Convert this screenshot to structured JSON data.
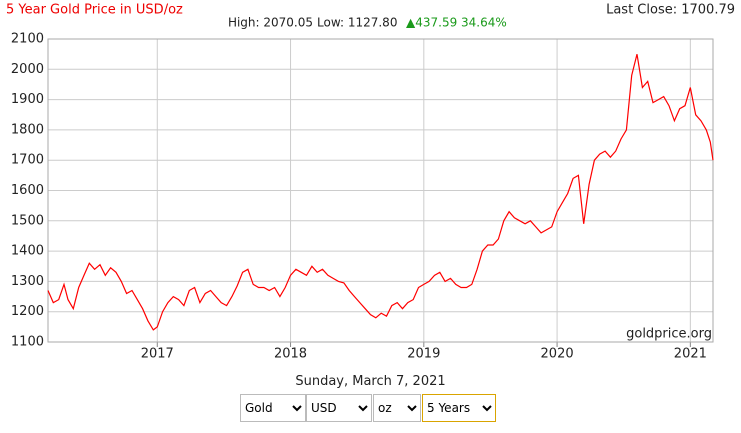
{
  "chart_data": {
    "type": "line",
    "title": "5 Year Gold Price in USD/oz",
    "last_close": "Last Close: 1700.79",
    "high": "High: 2070.05",
    "low": "Low: 1127.80",
    "change": "▲437.59 34.64%",
    "watermark": "goldprice.org",
    "date": "Sunday, March 7, 2021",
    "controls": [
      "Gold",
      "USD",
      "oz",
      "5 Years"
    ],
    "x": [
      2016.18,
      2016.22,
      2016.26,
      2016.3,
      2016.33,
      2016.37,
      2016.41,
      2016.45,
      2016.49,
      2016.53,
      2016.57,
      2016.61,
      2016.65,
      2016.69,
      2016.73,
      2016.77,
      2016.81,
      2016.85,
      2016.89,
      2016.93,
      2016.97,
      2017,
      2017.04,
      2017.08,
      2017.12,
      2017.16,
      2017.2,
      2017.24,
      2017.28,
      2017.32,
      2017.36,
      2017.4,
      2017.44,
      2017.48,
      2017.52,
      2017.56,
      2017.6,
      2017.64,
      2017.68,
      2017.72,
      2017.76,
      2017.8,
      2017.84,
      2017.88,
      2017.92,
      2017.96,
      2018,
      2018.04,
      2018.08,
      2018.12,
      2018.16,
      2018.2,
      2018.24,
      2018.28,
      2018.32,
      2018.36,
      2018.4,
      2018.44,
      2018.48,
      2018.52,
      2018.56,
      2018.6,
      2018.64,
      2018.68,
      2018.72,
      2018.76,
      2018.8,
      2018.84,
      2018.88,
      2018.92,
      2018.96,
      2019,
      2019.04,
      2019.08,
      2019.12,
      2019.16,
      2019.2,
      2019.24,
      2019.28,
      2019.32,
      2019.36,
      2019.4,
      2019.44,
      2019.48,
      2019.52,
      2019.56,
      2019.6,
      2019.64,
      2019.68,
      2019.72,
      2019.76,
      2019.8,
      2019.84,
      2019.88,
      2019.92,
      2019.96,
      2020,
      2020.04,
      2020.08,
      2020.12,
      2020.16,
      2020.2,
      2020.24,
      2020.28,
      2020.32,
      2020.36,
      2020.4,
      2020.44,
      2020.48,
      2020.52,
      2020.56,
      2020.6,
      2020.64,
      2020.68,
      2020.72,
      2020.76,
      2020.8,
      2020.84,
      2020.88,
      2020.92,
      2020.96,
      2021,
      2021.04,
      2021.08,
      2021.12,
      2021.15,
      2021.17
    ],
    "series": [
      {
        "color": "#ff0000",
        "values": [
          1270,
          1230,
          1240,
          1290,
          1240,
          1210,
          1280,
          1320,
          1360,
          1340,
          1355,
          1320,
          1345,
          1330,
          1300,
          1260,
          1270,
          1240,
          1210,
          1170,
          1140,
          1150,
          1200,
          1230,
          1250,
          1240,
          1220,
          1270,
          1280,
          1230,
          1260,
          1270,
          1250,
          1230,
          1220,
          1250,
          1285,
          1330,
          1340,
          1290,
          1280,
          1280,
          1270,
          1280,
          1250,
          1280,
          1320,
          1340,
          1330,
          1320,
          1350,
          1330,
          1340,
          1320,
          1310,
          1300,
          1295,
          1270,
          1250,
          1230,
          1210,
          1190,
          1180,
          1195,
          1185,
          1220,
          1230,
          1210,
          1230,
          1240,
          1280,
          1290,
          1300,
          1320,
          1330,
          1300,
          1310,
          1290,
          1280,
          1280,
          1290,
          1340,
          1400,
          1420,
          1420,
          1440,
          1500,
          1530,
          1510,
          1500,
          1490,
          1500,
          1480,
          1460,
          1470,
          1480,
          1530,
          1560,
          1590,
          1640,
          1650,
          1490,
          1620,
          1700,
          1720,
          1730,
          1710,
          1730,
          1770,
          1800,
          1980,
          2050,
          1940,
          1960,
          1890,
          1900,
          1910,
          1880,
          1830,
          1870,
          1880,
          1940,
          1850,
          1830,
          1800,
          1760,
          1700
        ]
      }
    ],
    "xlim": [
      2016.18,
      2021.17
    ],
    "xticks": [
      2017,
      2018,
      2019,
      2020,
      2021
    ],
    "ylim": [
      1100,
      2100
    ],
    "yticks": [
      1100,
      1200,
      1300,
      1400,
      1500,
      1600,
      1700,
      1800,
      1900,
      2000,
      2100
    ],
    "grid": true
  }
}
